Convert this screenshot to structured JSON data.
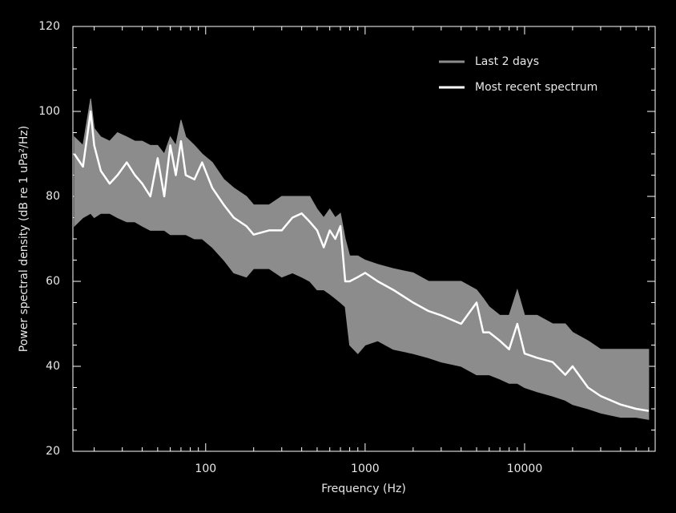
{
  "chart_data": {
    "type": "line",
    "x_label": "Frequency (Hz)",
    "y_label": "Power spectral density (dB re 1 uPa²/Hz)",
    "x": [
      15,
      17,
      19,
      20,
      22,
      25,
      28,
      32,
      36,
      40,
      45,
      50,
      55,
      60,
      65,
      70,
      75,
      85,
      95,
      110,
      130,
      150,
      180,
      200,
      250,
      300,
      350,
      400,
      450,
      500,
      550,
      600,
      650,
      700,
      750,
      800,
      900,
      1000,
      1200,
      1500,
      2000,
      2500,
      3000,
      4000,
      5000,
      5500,
      6000,
      7000,
      8000,
      9000,
      10000,
      12000,
      15000,
      18000,
      20000,
      25000,
      30000,
      40000,
      50000,
      60000
    ],
    "series": [
      {
        "name": "Last 2 days",
        "color": "#8c8c8c",
        "lower": [
          73,
          75,
          76,
          75,
          76,
          76,
          75,
          74,
          74,
          73,
          72,
          72,
          72,
          71,
          71,
          71,
          71,
          70,
          70,
          68,
          65,
          62,
          61,
          63,
          63,
          61,
          62,
          61,
          60,
          58,
          58,
          57,
          56,
          55,
          54,
          45,
          43,
          45,
          46,
          44,
          43,
          42,
          41,
          40,
          38,
          38,
          38,
          37,
          36,
          36,
          35,
          34,
          33,
          32,
          31,
          30,
          29,
          28,
          28,
          27.5
        ],
        "upper": [
          94,
          92,
          103,
          96,
          94,
          93,
          95,
          94,
          93,
          93,
          92,
          92,
          90,
          94,
          92,
          98,
          94,
          92,
          90,
          88,
          84,
          82,
          80,
          78,
          78,
          80,
          80,
          80,
          80,
          77,
          75,
          77,
          75,
          76,
          70,
          66,
          66,
          65,
          64,
          63,
          62,
          60,
          60,
          60,
          58,
          56,
          54,
          52,
          52,
          58,
          52,
          52,
          50,
          50,
          48,
          46,
          44,
          44,
          44,
          44
        ]
      },
      {
        "name": "Most recent spectrum",
        "color": "#ffffff",
        "values": [
          90,
          87,
          100,
          92,
          86,
          83,
          85,
          88,
          85,
          83,
          80,
          89,
          80,
          92,
          85,
          93,
          85,
          84,
          88,
          82,
          78,
          75,
          73,
          71,
          72,
          72,
          75,
          76,
          74,
          72,
          68,
          72,
          70,
          73,
          60,
          60,
          61,
          62,
          60,
          58,
          55,
          53,
          52,
          50,
          55,
          48,
          48,
          46,
          44,
          50,
          43,
          42,
          41,
          38,
          40,
          35,
          33,
          31,
          30,
          29.5
        ]
      }
    ],
    "xscale": "log",
    "xlim": [
      14.7,
      65900
    ],
    "xticks": [
      100,
      1000,
      10000
    ],
    "xminor": [
      20,
      30,
      40,
      50,
      60,
      70,
      80,
      90,
      200,
      300,
      400,
      500,
      600,
      700,
      800,
      900,
      2000,
      3000,
      4000,
      5000,
      6000,
      7000,
      8000,
      9000,
      20000,
      30000,
      40000,
      50000,
      60000
    ],
    "ylim": [
      20,
      120
    ],
    "yticks": [
      20,
      40,
      60,
      80,
      100,
      120
    ],
    "yminor": [
      25,
      30,
      35,
      45,
      50,
      55,
      65,
      70,
      75,
      85,
      90,
      95,
      105,
      110,
      115
    ],
    "background": "#000000",
    "axis_color": "#ffffff",
    "legend": "upper right"
  }
}
